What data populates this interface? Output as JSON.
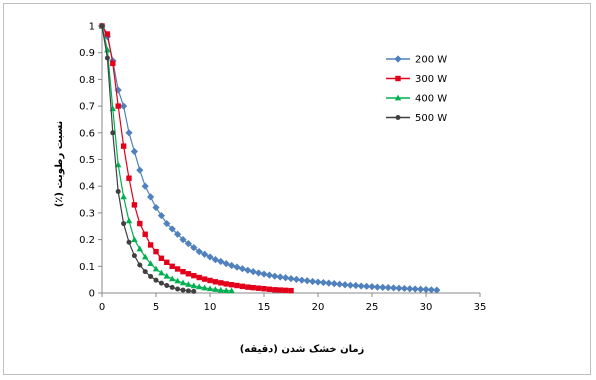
{
  "chart_data": {
    "type": "line",
    "title": "",
    "xlabel": "زمان خشک شدن (دقیقه)",
    "ylabel": "نسبت رطوبت (٪)",
    "xlim": [
      0,
      35
    ],
    "ylim": [
      0,
      1
    ],
    "xticks": [
      "0",
      "5",
      "10",
      "15",
      "20",
      "25",
      "30",
      "35"
    ],
    "yticks": [
      "0",
      "0.1",
      "0.2",
      "0.3",
      "0.4",
      "0.5",
      "0.6",
      "0.7",
      "0.8",
      "0.9",
      "1"
    ],
    "grid": false,
    "legend_position": "top-right",
    "series": [
      {
        "name": "200 W",
        "color": "#4f81bd",
        "marker": "diamond",
        "x": [
          0,
          0.5,
          1,
          1.5,
          2,
          2.5,
          3,
          3.5,
          4,
          4.5,
          5,
          5.5,
          6,
          6.5,
          7,
          7.5,
          8,
          8.5,
          9,
          9.5,
          10,
          10.5,
          11,
          11.5,
          12,
          12.5,
          13,
          13.5,
          14,
          14.5,
          15,
          15.5,
          16,
          16.5,
          17,
          17.5,
          18,
          18.5,
          19,
          19.5,
          20,
          20.5,
          21,
          21.5,
          22,
          22.5,
          23,
          23.5,
          24,
          24.5,
          25,
          25.5,
          26,
          26.5,
          27,
          27.5,
          28,
          28.5,
          29,
          29.5,
          30,
          30.5,
          31
        ],
        "y": [
          1,
          0.96,
          0.87,
          0.76,
          0.7,
          0.6,
          0.53,
          0.46,
          0.4,
          0.36,
          0.32,
          0.29,
          0.26,
          0.24,
          0.22,
          0.2,
          0.185,
          0.17,
          0.155,
          0.145,
          0.135,
          0.125,
          0.118,
          0.11,
          0.103,
          0.097,
          0.091,
          0.085,
          0.08,
          0.075,
          0.071,
          0.067,
          0.063,
          0.06,
          0.057,
          0.054,
          0.051,
          0.048,
          0.046,
          0.043,
          0.041,
          0.039,
          0.037,
          0.035,
          0.033,
          0.031,
          0.029,
          0.028,
          0.026,
          0.025,
          0.024,
          0.022,
          0.021,
          0.02,
          0.019,
          0.018,
          0.017,
          0.016,
          0.015,
          0.014,
          0.013,
          0.012,
          0.011
        ]
      },
      {
        "name": "300 W",
        "color": "#e2001a",
        "marker": "square",
        "x": [
          0,
          0.5,
          1,
          1.5,
          2,
          2.5,
          3,
          3.5,
          4,
          4.5,
          5,
          5.5,
          6,
          6.5,
          7,
          7.5,
          8,
          8.5,
          9,
          9.5,
          10,
          10.5,
          11,
          11.5,
          12,
          12.5,
          13,
          13.5,
          14,
          14.5,
          15,
          15.5,
          16,
          16.5,
          17,
          17.5
        ],
        "y": [
          1,
          0.97,
          0.86,
          0.7,
          0.55,
          0.43,
          0.33,
          0.26,
          0.22,
          0.18,
          0.155,
          0.13,
          0.115,
          0.1,
          0.09,
          0.08,
          0.072,
          0.065,
          0.058,
          0.052,
          0.047,
          0.042,
          0.038,
          0.034,
          0.031,
          0.028,
          0.025,
          0.022,
          0.02,
          0.018,
          0.016,
          0.014,
          0.012,
          0.011,
          0.01,
          0.009
        ]
      },
      {
        "name": "400 W",
        "color": "#00b050",
        "marker": "triangle",
        "x": [
          0,
          0.5,
          1,
          1.5,
          2,
          2.5,
          3,
          3.5,
          4,
          4.5,
          5,
          5.5,
          6,
          6.5,
          7,
          7.5,
          8,
          8.5,
          9,
          9.5,
          10,
          10.5,
          11,
          11.5,
          12
        ],
        "y": [
          1,
          0.91,
          0.69,
          0.48,
          0.36,
          0.27,
          0.2,
          0.165,
          0.135,
          0.11,
          0.09,
          0.075,
          0.063,
          0.053,
          0.045,
          0.038,
          0.032,
          0.027,
          0.023,
          0.019,
          0.016,
          0.013,
          0.011,
          0.009,
          0.008
        ]
      },
      {
        "name": "500 W",
        "color": "#404040",
        "marker": "circle",
        "x": [
          0,
          0.5,
          1,
          1.5,
          2,
          2.5,
          3,
          3.5,
          4,
          4.5,
          5,
          5.5,
          6,
          6.5,
          7,
          7.5,
          8,
          8.5
        ],
        "y": [
          1,
          0.88,
          0.6,
          0.38,
          0.26,
          0.19,
          0.14,
          0.105,
          0.08,
          0.062,
          0.048,
          0.037,
          0.028,
          0.021,
          0.015,
          0.011,
          0.008,
          0.006
        ]
      }
    ]
  }
}
